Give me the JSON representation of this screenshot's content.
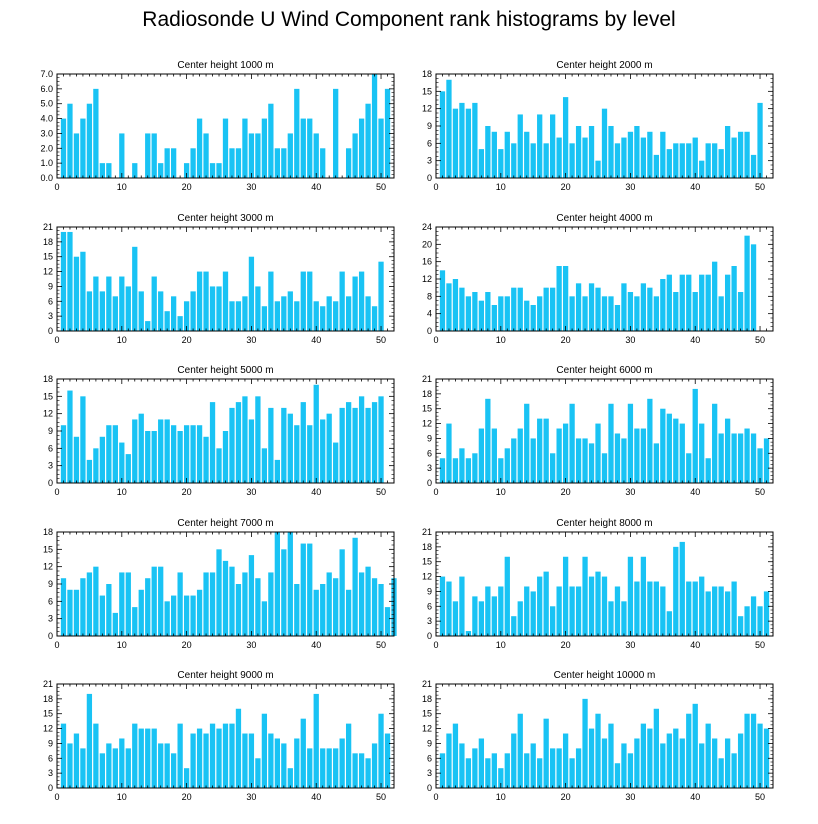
{
  "page_title": "Radiosonde U Wind Component rank histograms by level",
  "colors": {
    "bar": "#19c3f4",
    "axis": "#000000",
    "background": "#ffffff"
  },
  "chart_data": [
    {
      "type": "bar",
      "title": "Center height 1000 m",
      "xlabel": "",
      "ylabel": "",
      "xlim": [
        0,
        52
      ],
      "ylim": [
        0,
        7
      ],
      "xticks": [
        0,
        10,
        20,
        30,
        40,
        50
      ],
      "yticks": [
        0,
        1,
        2,
        3,
        4,
        5,
        6,
        7
      ],
      "ytick_labels": [
        "0.0",
        "1.0",
        "2.0",
        "3.0",
        "4.0",
        "5.0",
        "6.0",
        "7.0"
      ],
      "values": [
        4,
        5,
        3,
        4,
        5,
        6,
        1,
        1,
        0,
        3,
        0,
        1,
        0,
        3,
        3,
        1,
        2,
        2,
        0,
        1,
        2,
        4,
        3,
        1,
        1,
        4,
        2,
        2,
        4,
        3,
        3,
        4,
        5,
        2,
        2,
        3,
        6,
        4,
        4,
        3,
        2,
        0,
        6,
        0,
        2,
        3,
        4,
        5,
        7,
        4,
        6
      ]
    },
    {
      "type": "bar",
      "title": "Center height 2000 m",
      "xlabel": "",
      "ylabel": "",
      "xlim": [
        0,
        52
      ],
      "ylim": [
        0,
        18
      ],
      "xticks": [
        0,
        10,
        20,
        30,
        40,
        50
      ],
      "yticks": [
        0,
        3,
        6,
        9,
        12,
        15,
        18
      ],
      "ytick_labels": [
        "0",
        "3",
        "6",
        "9",
        "12",
        "15",
        "18"
      ],
      "values": [
        15,
        17,
        12,
        13,
        12,
        13,
        5,
        9,
        8,
        5,
        8,
        6,
        11,
        8,
        6,
        11,
        6,
        11,
        7,
        14,
        6,
        9,
        7,
        9,
        3,
        12,
        9,
        6,
        7,
        8,
        9,
        7,
        8,
        4,
        8,
        5,
        6,
        6,
        6,
        7,
        3,
        6,
        6,
        5,
        9,
        7,
        8,
        8,
        4,
        13,
        0
      ]
    },
    {
      "type": "bar",
      "title": "Center height 3000 m",
      "xlabel": "",
      "ylabel": "",
      "xlim": [
        0,
        52
      ],
      "ylim": [
        0,
        21
      ],
      "xticks": [
        0,
        10,
        20,
        30,
        40,
        50
      ],
      "yticks": [
        0,
        3,
        6,
        9,
        12,
        15,
        18,
        21
      ],
      "ytick_labels": [
        "0",
        "3",
        "6",
        "9",
        "12",
        "15",
        "18",
        "21"
      ],
      "values": [
        20,
        20,
        15,
        16,
        8,
        11,
        8,
        11,
        7,
        11,
        9,
        17,
        8,
        2,
        11,
        8,
        4,
        7,
        3,
        6,
        8,
        12,
        12,
        9,
        9,
        12,
        6,
        6,
        7,
        15,
        9,
        5,
        12,
        6,
        7,
        8,
        6,
        12,
        12,
        6,
        5,
        7,
        6,
        12,
        7,
        11,
        12,
        7,
        5,
        14,
        0
      ]
    },
    {
      "type": "bar",
      "title": "Center height 4000 m",
      "xlabel": "",
      "ylabel": "",
      "xlim": [
        0,
        52
      ],
      "ylim": [
        0,
        24
      ],
      "xticks": [
        0,
        10,
        20,
        30,
        40,
        50
      ],
      "yticks": [
        0,
        4,
        8,
        12,
        16,
        20,
        24
      ],
      "ytick_labels": [
        "0",
        "4",
        "8",
        "12",
        "16",
        "20",
        "24"
      ],
      "values": [
        14,
        11,
        12,
        10,
        8,
        9,
        7,
        9,
        6,
        8,
        8,
        10,
        10,
        7,
        6,
        8,
        10,
        10,
        15,
        15,
        8,
        11,
        8,
        11,
        10,
        8,
        8,
        6,
        11,
        9,
        8,
        11,
        10,
        8,
        12,
        13,
        9,
        13,
        13,
        9,
        13,
        13,
        16,
        8,
        13,
        15,
        9,
        22,
        20,
        0,
        0
      ]
    },
    {
      "type": "bar",
      "title": "Center height 5000 m",
      "xlabel": "",
      "ylabel": "",
      "xlim": [
        0,
        52
      ],
      "ylim": [
        0,
        18
      ],
      "xticks": [
        0,
        10,
        20,
        30,
        40,
        50
      ],
      "yticks": [
        0,
        3,
        6,
        9,
        12,
        15,
        18
      ],
      "ytick_labels": [
        "0",
        "3",
        "6",
        "9",
        "12",
        "15",
        "18"
      ],
      "values": [
        10,
        16,
        8,
        15,
        4,
        6,
        8,
        10,
        10,
        7,
        5,
        11,
        12,
        9,
        9,
        11,
        11,
        10,
        9,
        10,
        10,
        10,
        8,
        14,
        6,
        9,
        13,
        14,
        15,
        11,
        15,
        6,
        13,
        4,
        13,
        12,
        10,
        14,
        10,
        17,
        11,
        12,
        7,
        13,
        14,
        13,
        15,
        13,
        14,
        15,
        0
      ]
    },
    {
      "type": "bar",
      "title": "Center height 6000 m",
      "xlabel": "",
      "ylabel": "",
      "xlim": [
        0,
        52
      ],
      "ylim": [
        0,
        21
      ],
      "xticks": [
        0,
        10,
        20,
        30,
        40,
        50
      ],
      "yticks": [
        0,
        3,
        6,
        9,
        12,
        15,
        18,
        21
      ],
      "ytick_labels": [
        "0",
        "3",
        "6",
        "9",
        "12",
        "15",
        "18",
        "21"
      ],
      "values": [
        5,
        12,
        5,
        7,
        5,
        6,
        11,
        17,
        11,
        5,
        7,
        9,
        11,
        16,
        9,
        13,
        13,
        6,
        11,
        12,
        16,
        9,
        9,
        8,
        12,
        6,
        16,
        10,
        9,
        16,
        11,
        11,
        17,
        8,
        15,
        14,
        13,
        12,
        6,
        19,
        12,
        5,
        16,
        10,
        13,
        10,
        10,
        11,
        10,
        7,
        9
      ]
    },
    {
      "type": "bar",
      "title": "Center height 7000 m",
      "xlabel": "",
      "ylabel": "",
      "xlim": [
        0,
        52
      ],
      "ylim": [
        0,
        18
      ],
      "xticks": [
        0,
        10,
        20,
        30,
        40,
        50
      ],
      "yticks": [
        0,
        3,
        6,
        9,
        12,
        15,
        18
      ],
      "ytick_labels": [
        "0",
        "3",
        "6",
        "9",
        "12",
        "15",
        "18"
      ],
      "values": [
        10,
        8,
        8,
        10,
        11,
        12,
        7,
        9,
        4,
        11,
        11,
        5,
        8,
        10,
        12,
        12,
        6,
        7,
        11,
        7,
        7,
        8,
        11,
        11,
        15,
        13,
        12,
        9,
        11,
        14,
        10,
        6,
        11,
        18,
        15,
        18,
        9,
        16,
        16,
        8,
        9,
        11,
        10,
        15,
        8,
        17,
        11,
        12,
        10,
        9,
        5,
        10
      ]
    },
    {
      "type": "bar",
      "title": "Center height 8000 m",
      "xlabel": "",
      "ylabel": "",
      "xlim": [
        0,
        52
      ],
      "ylim": [
        0,
        21
      ],
      "xticks": [
        0,
        10,
        20,
        30,
        40,
        50
      ],
      "yticks": [
        0,
        3,
        6,
        9,
        12,
        15,
        18,
        21
      ],
      "ytick_labels": [
        "0",
        "3",
        "6",
        "9",
        "12",
        "15",
        "18",
        "21"
      ],
      "values": [
        12,
        11,
        7,
        12,
        1,
        8,
        7,
        10,
        8,
        10,
        16,
        4,
        7,
        10,
        9,
        12,
        13,
        6,
        10,
        16,
        10,
        10,
        16,
        12,
        13,
        12,
        7,
        10,
        7,
        16,
        11,
        16,
        11,
        11,
        10,
        5,
        18,
        19,
        11,
        11,
        12,
        9,
        10,
        10,
        9,
        11,
        4,
        6,
        8,
        6,
        9
      ]
    },
    {
      "type": "bar",
      "title": "Center height 9000 m",
      "xlabel": "",
      "ylabel": "",
      "xlim": [
        0,
        52
      ],
      "ylim": [
        0,
        21
      ],
      "xticks": [
        0,
        10,
        20,
        30,
        40,
        50
      ],
      "yticks": [
        0,
        3,
        6,
        9,
        12,
        15,
        18,
        21
      ],
      "ytick_labels": [
        "0",
        "3",
        "6",
        "9",
        "12",
        "15",
        "18",
        "21"
      ],
      "values": [
        13,
        9,
        11,
        8,
        19,
        13,
        7,
        9,
        8,
        10,
        8,
        13,
        12,
        12,
        12,
        9,
        9,
        7,
        13,
        4,
        11,
        12,
        11,
        13,
        12,
        13,
        13,
        16,
        11,
        11,
        6,
        15,
        11,
        10,
        9,
        4,
        10,
        14,
        8,
        19,
        8,
        8,
        8,
        10,
        13,
        7,
        7,
        6,
        9,
        15,
        11
      ]
    },
    {
      "type": "bar",
      "title": "Center height 10000 m",
      "xlabel": "",
      "ylabel": "",
      "xlim": [
        0,
        52
      ],
      "ylim": [
        0,
        21
      ],
      "xticks": [
        0,
        10,
        20,
        30,
        40,
        50
      ],
      "yticks": [
        0,
        3,
        6,
        9,
        12,
        15,
        18,
        21
      ],
      "ytick_labels": [
        "0",
        "3",
        "6",
        "9",
        "12",
        "15",
        "18",
        "21"
      ],
      "values": [
        7,
        11,
        13,
        9,
        6,
        8,
        10,
        6,
        7,
        4,
        7,
        11,
        15,
        7,
        9,
        6,
        14,
        8,
        8,
        11,
        6,
        8,
        18,
        12,
        15,
        10,
        13,
        5,
        9,
        7,
        10,
        13,
        12,
        16,
        9,
        11,
        12,
        10,
        15,
        17,
        9,
        13,
        10,
        6,
        10,
        7,
        11,
        15,
        15,
        13,
        12
      ]
    }
  ]
}
